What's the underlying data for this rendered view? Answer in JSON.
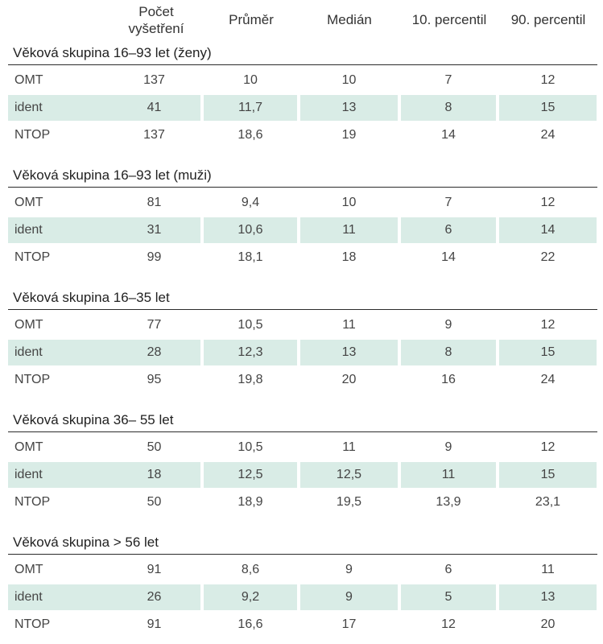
{
  "header": {
    "col1_line1": "Počet",
    "col1_line2": "vyšetření",
    "col2": "Průměr",
    "col3": "Medián",
    "col4": "10. percentil",
    "col5": "90. percentil"
  },
  "groups": [
    {
      "title": "Věková skupina 16–93 let (ženy)",
      "rows": [
        {
          "label": "OMT",
          "count": "137",
          "mean": "10",
          "median": "10",
          "p10": "7",
          "p90": "12"
        },
        {
          "label": "ident",
          "count": "41",
          "mean": "11,7",
          "median": "13",
          "p10": "8",
          "p90": "15"
        },
        {
          "label": "NTOP",
          "count": "137",
          "mean": "18,6",
          "median": "19",
          "p10": "14",
          "p90": "24"
        }
      ]
    },
    {
      "title": "Věková skupina 16–93 let (muži)",
      "rows": [
        {
          "label": "OMT",
          "count": "81",
          "mean": "9,4",
          "median": "10",
          "p10": "7",
          "p90": "12"
        },
        {
          "label": "ident",
          "count": "31",
          "mean": "10,6",
          "median": "11",
          "p10": "6",
          "p90": "14"
        },
        {
          "label": "NTOP",
          "count": "99",
          "mean": "18,1",
          "median": "18",
          "p10": "14",
          "p90": "22"
        }
      ]
    },
    {
      "title": "Věková skupina 16–35 let",
      "rows": [
        {
          "label": "OMT",
          "count": "77",
          "mean": "10,5",
          "median": "11",
          "p10": "9",
          "p90": "12"
        },
        {
          "label": "ident",
          "count": "28",
          "mean": "12,3",
          "median": "13",
          "p10": "8",
          "p90": "15"
        },
        {
          "label": "NTOP",
          "count": "95",
          "mean": "19,8",
          "median": "20",
          "p10": "16",
          "p90": "24"
        }
      ]
    },
    {
      "title": "Věková skupina 36– 55 let",
      "rows": [
        {
          "label": "OMT",
          "count": "50",
          "mean": "10,5",
          "median": "11",
          "p10": "9",
          "p90": "12"
        },
        {
          "label": "ident",
          "count": "18",
          "mean": "12,5",
          "median": "12,5",
          "p10": "11",
          "p90": "15"
        },
        {
          "label": "NTOP",
          "count": "50",
          "mean": "18,9",
          "median": "19,5",
          "p10": "13,9",
          "p90": "23,1"
        }
      ]
    },
    {
      "title": "Věková skupina > 56 let",
      "rows": [
        {
          "label": "OMT",
          "count": "91",
          "mean": "8,6",
          "median": "9",
          "p10": "6",
          "p90": "11"
        },
        {
          "label": "ident",
          "count": "26",
          "mean": "9,2",
          "median": "9",
          "p10": "5",
          "p90": "13"
        },
        {
          "label": "NTOP",
          "count": "91",
          "mean": "16,6",
          "median": "17",
          "p10": "12",
          "p90": "20"
        }
      ]
    }
  ]
}
